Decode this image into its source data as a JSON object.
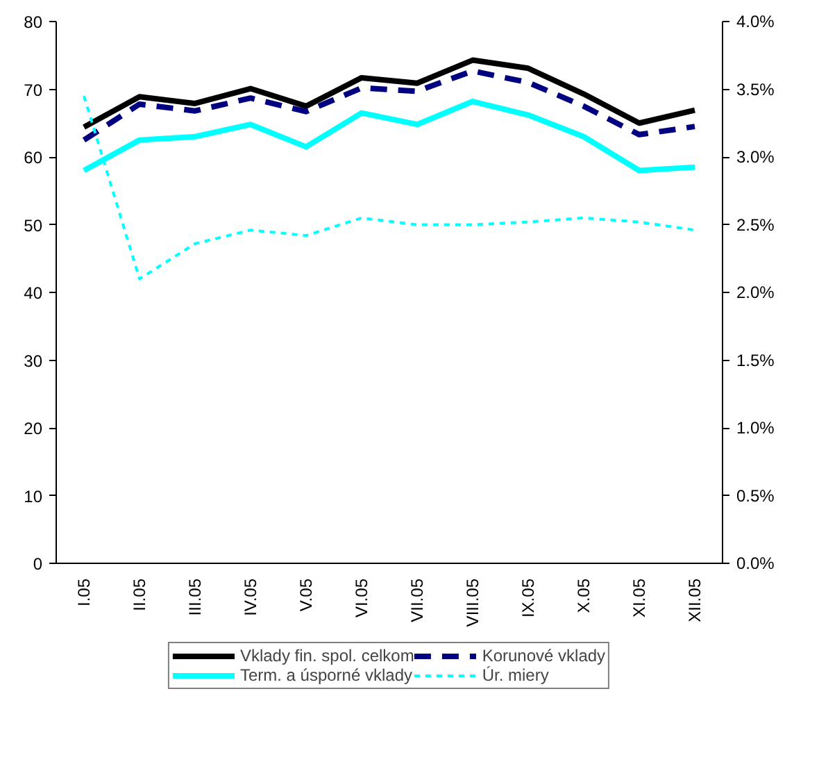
{
  "chart_data": {
    "type": "line",
    "categories": [
      "I.05",
      "II.05",
      "III.05",
      "IV.05",
      "V.05",
      "VI.05",
      "VII.05",
      "VIII.05",
      "IX.05",
      "X.05",
      "XI.05",
      "XII.05"
    ],
    "series": [
      {
        "name": "Vklady fin. spol. celkom",
        "color": "#000000",
        "line_style": "solid",
        "values": [
          64.4,
          68.9,
          67.9,
          70.1,
          67.5,
          71.7,
          70.9,
          74.3,
          73.1,
          69.3,
          65.0,
          66.9
        ]
      },
      {
        "name": "Korunové vklady",
        "color": "#000080",
        "line_style": "dashed",
        "values": [
          62.5,
          67.8,
          66.8,
          68.7,
          66.7,
          70.2,
          69.7,
          72.7,
          71.0,
          67.5,
          63.3,
          64.5
        ]
      },
      {
        "name": "Term. a úsporné vklady",
        "color": "#00ffff",
        "line_style": "solid",
        "values": [
          58.0,
          62.5,
          63.0,
          64.8,
          61.5,
          66.5,
          64.8,
          68.2,
          66.2,
          63.0,
          58.0,
          58.5
        ]
      },
      {
        "name": "Úr. miery",
        "color": "#00ffff",
        "line_style": "dotted",
        "axis": "y2",
        "values": [
          3.45,
          2.1,
          2.36,
          2.46,
          2.42,
          2.55,
          2.5,
          2.5,
          2.52,
          2.55,
          2.52,
          2.46
        ]
      }
    ],
    "ylim": [
      0,
      80
    ],
    "yticks": [
      0,
      10,
      20,
      30,
      40,
      50,
      60,
      70,
      80
    ],
    "y2lim": [
      0,
      4.0
    ],
    "y2ticks": [
      {
        "value": 0,
        "label": "0.0%"
      },
      {
        "value": 0.5,
        "label": "0.5%"
      },
      {
        "value": 1.0,
        "label": "1.0%"
      },
      {
        "value": 1.5,
        "label": "1.5%"
      },
      {
        "value": 2.0,
        "label": "2.0%"
      },
      {
        "value": 2.5,
        "label": "2.5%"
      },
      {
        "value": 3.0,
        "label": "3.0%"
      },
      {
        "value": 3.5,
        "label": "3.5%"
      },
      {
        "value": 4.0,
        "label": "4.0%"
      }
    ],
    "grid": false,
    "legend": "bottom"
  }
}
